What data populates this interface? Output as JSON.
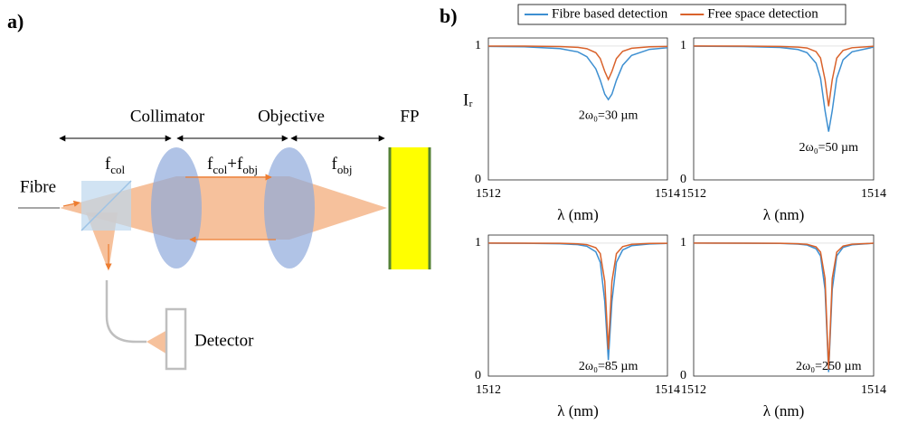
{
  "panel_labels": [
    "a)",
    "b)"
  ],
  "diagram": {
    "components": [
      "Collimator",
      "Objective",
      "FP",
      "Fibre",
      "Detector"
    ],
    "distances": [
      [
        "f",
        "col"
      ],
      [
        "f",
        "col",
        "+f",
        "obj"
      ],
      [
        "f",
        "obj"
      ]
    ]
  },
  "chart_data": [
    {
      "type": "line",
      "x": [
        1512,
        1512.4,
        1512.8,
        1513.0,
        1513.1,
        1513.2,
        1513.25,
        1513.3,
        1513.34,
        1513.38,
        1513.43,
        1513.5,
        1513.6,
        1513.8,
        1514
      ],
      "series": [
        {
          "name": "Fibre based detection",
          "color": "#3d8fd1",
          "values": [
            0.997,
            0.994,
            0.981,
            0.956,
            0.92,
            0.83,
            0.744,
            0.64,
            0.6,
            0.64,
            0.744,
            0.856,
            0.93,
            0.975,
            0.987
          ]
        },
        {
          "name": "Free space detection",
          "color": "#d9622b",
          "values": [
            0.999,
            0.999,
            0.996,
            0.99,
            0.98,
            0.95,
            0.906,
            0.81,
            0.75,
            0.81,
            0.906,
            0.96,
            0.983,
            0.994,
            0.997
          ]
        }
      ],
      "xlim": [
        1512,
        1514
      ],
      "ylim": [
        0,
        1.06
      ],
      "xticks": [
        1512,
        1514
      ],
      "yticks": [
        0,
        1
      ],
      "grid": true,
      "x_label": "λ (nm)",
      "y_label": "Iᵣ",
      "annotation": "2ω₀=30 µm"
    },
    {
      "type": "line",
      "x": [
        1512,
        1512.56,
        1512.96,
        1513.16,
        1513.26,
        1513.36,
        1513.41,
        1513.46,
        1513.5,
        1513.54,
        1513.59,
        1513.66,
        1513.76,
        1513.96,
        1514
      ],
      "series": [
        {
          "color": "#3d8fd1",
          "values": [
            0.998,
            0.996,
            0.989,
            0.974,
            0.95,
            0.872,
            0.759,
            0.517,
            0.36,
            0.517,
            0.759,
            0.897,
            0.957,
            0.986,
            0.993
          ]
        },
        {
          "color": "#d9622b",
          "values": [
            1,
            0.999,
            0.997,
            0.992,
            0.985,
            0.958,
            0.91,
            0.748,
            0.55,
            0.748,
            0.91,
            0.967,
            0.987,
            0.996,
            0.998
          ]
        }
      ],
      "xlim": [
        1512,
        1514
      ],
      "ylim": [
        0,
        1.06
      ],
      "xticks": [
        1512,
        1514
      ],
      "yticks": [
        0,
        1
      ],
      "grid": true,
      "x_label": "λ (nm)",
      "annotation": "2ω₀=50 µm"
    },
    {
      "type": "line",
      "x": [
        1512,
        1512.4,
        1512.8,
        1513.0,
        1513.1,
        1513.2,
        1513.25,
        1513.3,
        1513.34,
        1513.38,
        1513.43,
        1513.5,
        1513.6,
        1513.8,
        1514
      ],
      "series": [
        {
          "color": "#3d8fd1",
          "values": [
            0.999,
            0.998,
            0.995,
            0.988,
            0.976,
            0.934,
            0.855,
            0.56,
            0.12,
            0.56,
            0.855,
            0.948,
            0.98,
            0.993,
            0.997
          ]
        },
        {
          "color": "#d9622b",
          "values": [
            1,
            0.999,
            0.998,
            0.994,
            0.988,
            0.965,
            0.92,
            0.712,
            0.2,
            0.712,
            0.92,
            0.973,
            0.99,
            0.997,
            0.998
          ]
        }
      ],
      "xlim": [
        1512,
        1514
      ],
      "ylim": [
        0,
        1.06
      ],
      "xticks": [
        1512,
        1514
      ],
      "yticks": [
        0,
        1
      ],
      "grid": true,
      "x_label": "λ (nm)",
      "annotation": "2ω₀=85 µm"
    },
    {
      "type": "line",
      "x": [
        1512,
        1512.56,
        1512.96,
        1513.16,
        1513.26,
        1513.36,
        1513.41,
        1513.46,
        1513.5,
        1513.54,
        1513.59,
        1513.66,
        1513.76,
        1513.96,
        1514
      ],
      "series": [
        {
          "color": "#3d8fd1",
          "values": [
            1,
            0.999,
            0.997,
            0.992,
            0.985,
            0.957,
            0.903,
            0.651,
            0.03,
            0.651,
            0.903,
            0.967,
            0.987,
            0.996,
            0.998
          ]
        },
        {
          "color": "#d9622b",
          "values": [
            1,
            0.999,
            0.998,
            0.995,
            0.99,
            0.971,
            0.932,
            0.733,
            0.05,
            0.733,
            0.932,
            0.977,
            0.991,
            0.997,
            0.999
          ]
        }
      ],
      "xlim": [
        1512,
        1514
      ],
      "ylim": [
        0,
        1.06
      ],
      "xticks": [
        1512,
        1514
      ],
      "yticks": [
        0,
        1
      ],
      "grid": true,
      "x_label": "λ (nm)",
      "annotation": "2ω₀=250 µm"
    }
  ]
}
